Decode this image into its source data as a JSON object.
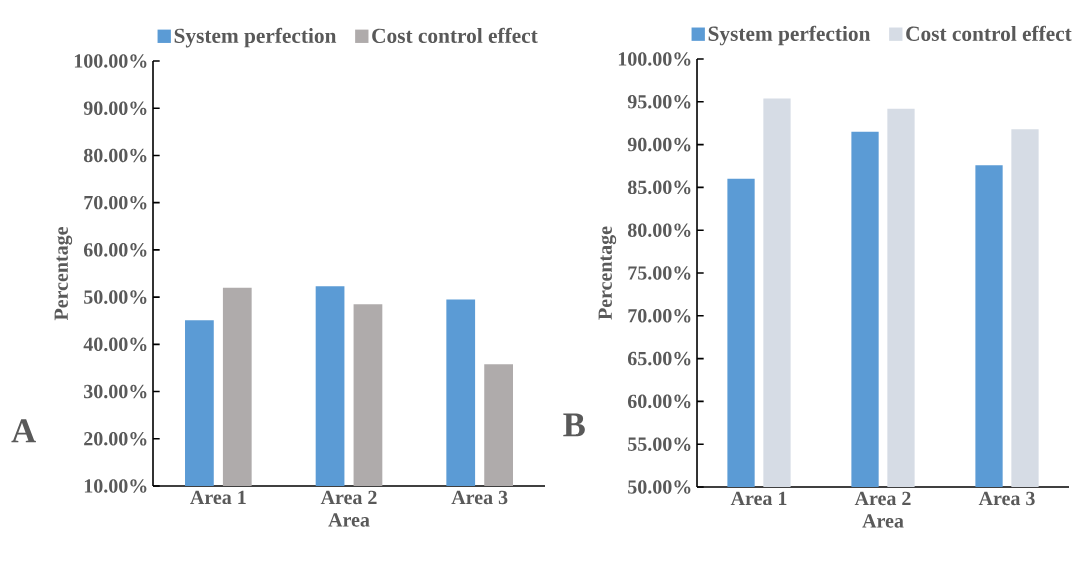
{
  "chart_data": [
    {
      "type": "bar",
      "categories": [
        "Area 1",
        "Area 2",
        "Area 3"
      ],
      "xlabel": "Area",
      "ylabel": "Percentage",
      "legend": "top",
      "annotations": [
        "A"
      ],
      "series": [
        {
          "name": "System perfection",
          "color": "#5b9bd5",
          "values": [
            45.1,
            52.3,
            49.5
          ]
        },
        {
          "name": "Cost control effect",
          "color": "#afabab",
          "values": [
            52.0,
            48.5,
            35.8
          ]
        }
      ],
      "ylim": [
        10,
        100
      ],
      "yticks": [
        {
          "value": 10,
          "label": "10.00%"
        },
        {
          "value": 20,
          "label": "20.00%"
        },
        {
          "value": 30,
          "label": "30.00%"
        },
        {
          "value": 40,
          "label": "40.00%"
        },
        {
          "value": 50,
          "label": "50.00%"
        },
        {
          "value": 60,
          "label": "60.00%"
        },
        {
          "value": 70,
          "label": "70.00%"
        },
        {
          "value": 80,
          "label": "80.00%"
        },
        {
          "value": 90,
          "label": "90.00%"
        },
        {
          "value": 100,
          "label": "100.00%"
        }
      ]
    },
    {
      "type": "bar",
      "categories": [
        "Area 1",
        "Area 2",
        "Area 3"
      ],
      "xlabel": "Area",
      "ylabel": "Percentage",
      "legend": "top",
      "annotations": [
        "B"
      ],
      "series": [
        {
          "name": "System perfection",
          "color": "#5b9bd5",
          "values": [
            86.0,
            91.5,
            87.6
          ]
        },
        {
          "name": "Cost control effect",
          "color": "#d6dce5",
          "values": [
            95.4,
            94.2,
            91.8
          ]
        }
      ],
      "ylim": [
        50,
        100
      ],
      "yticks": [
        {
          "value": 50,
          "label": "50.00%"
        },
        {
          "value": 55,
          "label": "55.00%"
        },
        {
          "value": 60,
          "label": "60.00%"
        },
        {
          "value": 65,
          "label": "65.00%"
        },
        {
          "value": 70,
          "label": "70.00%"
        },
        {
          "value": 75,
          "label": "75.00%"
        },
        {
          "value": 80,
          "label": "80.00%"
        },
        {
          "value": 85,
          "label": "85.00%"
        },
        {
          "value": 90,
          "label": "90.00%"
        },
        {
          "value": 95,
          "label": "95.00%"
        },
        {
          "value": 100,
          "label": "100.00%"
        }
      ]
    }
  ]
}
